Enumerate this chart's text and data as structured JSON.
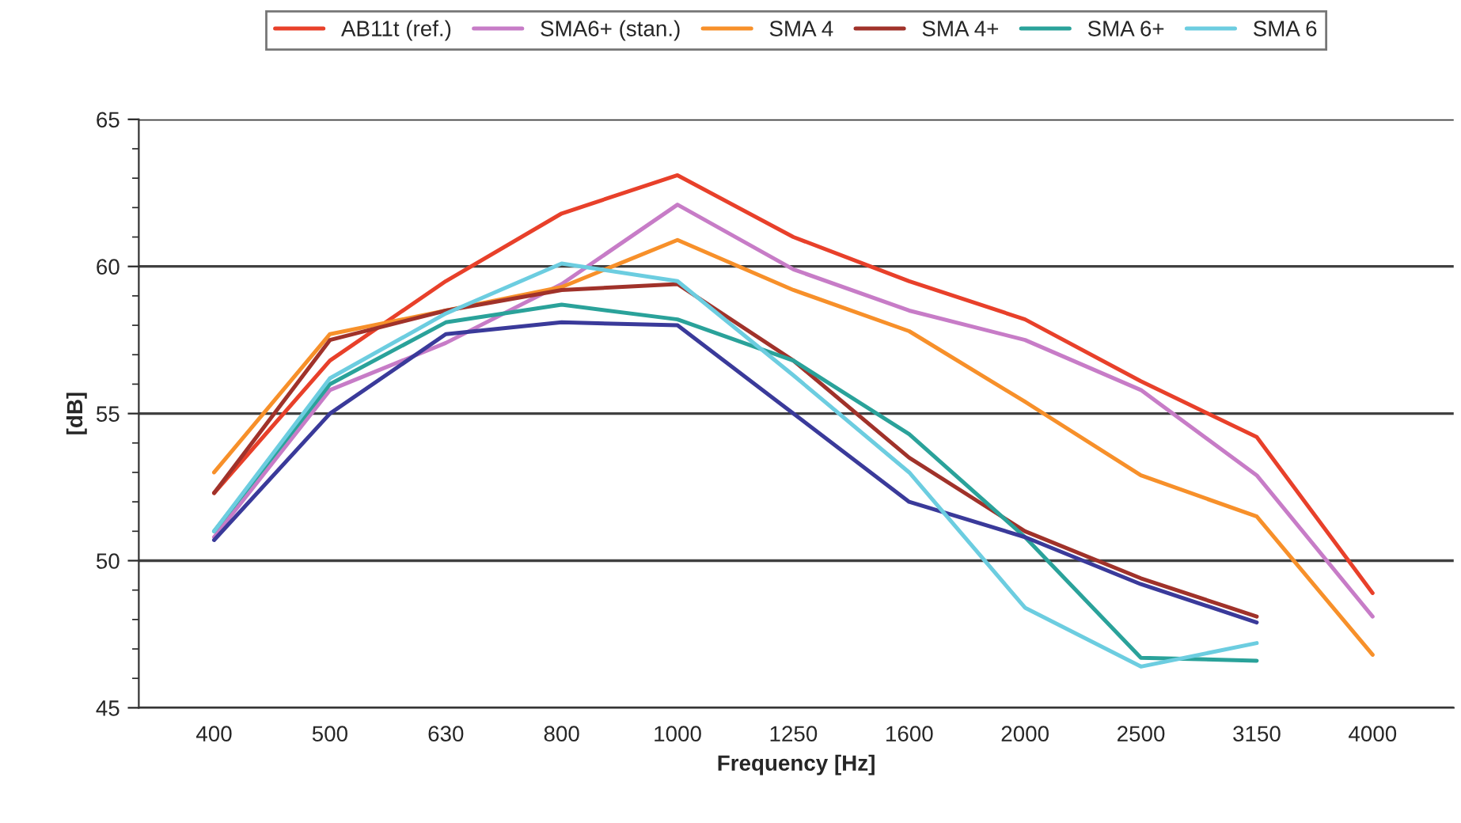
{
  "chart_data": {
    "type": "line",
    "xlabel": "Frequency [Hz]",
    "ylabel": "[dB]",
    "categories": [
      "400",
      "500",
      "630",
      "800",
      "1000",
      "1250",
      "1600",
      "2000",
      "2500",
      "3150",
      "4000"
    ],
    "series": [
      {
        "name": "AB11t (ref.)",
        "color": "#e8402a",
        "values": [
          52.3,
          56.8,
          59.5,
          61.8,
          63.1,
          61.0,
          59.5,
          58.2,
          56.1,
          54.2,
          48.9
        ]
      },
      {
        "name": "SMA6+ (stan.)",
        "color": "#c77cc7",
        "values": [
          50.8,
          55.8,
          57.4,
          59.4,
          62.1,
          59.9,
          58.5,
          57.5,
          55.8,
          52.9,
          48.1
        ]
      },
      {
        "name": "SMA 4",
        "color": "#f7902a",
        "values": [
          53.0,
          57.7,
          58.5,
          59.3,
          60.9,
          59.2,
          57.8,
          55.4,
          52.9,
          51.5,
          46.8
        ]
      },
      {
        "name": "SMA 4+",
        "color": "#a0322a",
        "values": [
          52.3,
          57.5,
          58.5,
          59.2,
          59.4,
          56.8,
          53.5,
          51.0,
          49.4,
          48.1,
          null
        ]
      },
      {
        "name": "SMA 6+",
        "color": "#2aa29a",
        "values": [
          51.0,
          56.0,
          58.1,
          58.7,
          58.2,
          56.8,
          54.3,
          50.8,
          46.7,
          46.6,
          null
        ]
      },
      {
        "color": "#3a3a9a",
        "values": [
          50.7,
          55.0,
          57.7,
          58.1,
          58.0,
          55.0,
          52.0,
          50.8,
          49.2,
          47.9,
          null
        ]
      },
      {
        "name": "SMA 6",
        "color": "#6ccde0",
        "values": [
          51.0,
          56.2,
          58.4,
          60.1,
          59.5,
          56.3,
          53.0,
          48.4,
          46.4,
          47.2,
          null
        ]
      }
    ],
    "ylim": [
      45,
      65
    ],
    "yticks": [
      45,
      50,
      55,
      60,
      65
    ],
    "grid": "y",
    "legend": "top",
    "marker": "none",
    "line_style": "solid"
  }
}
